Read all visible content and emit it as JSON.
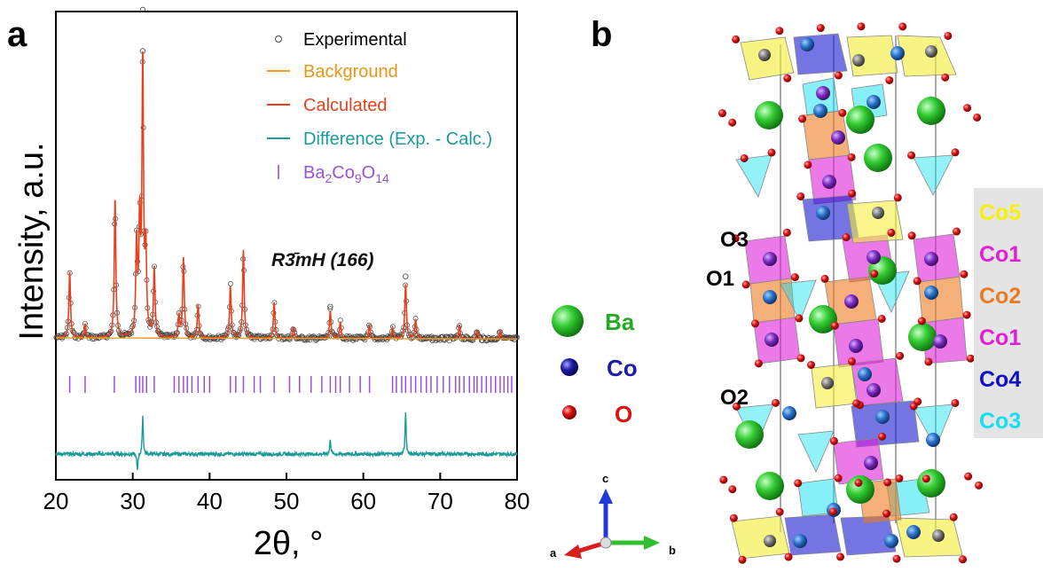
{
  "panel_a": {
    "label": "a",
    "legend": {
      "experimental": "Experimental",
      "background": "Background",
      "calculated": "Calculated",
      "difference": "Difference (Exp. - Calc.)",
      "phase_base": "Ba",
      "phase_sub1": "2",
      "phase_co": "Co",
      "phase_sub2": "9",
      "phase_o": "O",
      "phase_sub3": "14"
    },
    "space_group": "R3̄mH (166)"
  },
  "chart_data": {
    "type": "line",
    "title": "",
    "xlabel": "2θ, °",
    "ylabel": "Intensity, a.u.",
    "xlim": [
      20,
      80
    ],
    "x_ticks": [
      "20",
      "30",
      "40",
      "50",
      "60",
      "70",
      "80"
    ],
    "y_ticks_shown": false,
    "grid": false,
    "legend_position": "top-right",
    "colors": {
      "experimental": "#444444",
      "background": "#f0a020",
      "calculated": "#e8401c",
      "difference": "#1a9a9a",
      "bragg": "#9b4fd8"
    },
    "peaks": [
      {
        "x": 21.8,
        "height": 0.24
      },
      {
        "x": 23.8,
        "height": 0.05
      },
      {
        "x": 27.7,
        "height": 0.51
      },
      {
        "x": 30.5,
        "height": 0.34
      },
      {
        "x": 30.9,
        "height": 0.4
      },
      {
        "x": 31.3,
        "height": 1.0
      },
      {
        "x": 31.7,
        "height": 0.3
      },
      {
        "x": 32.8,
        "height": 0.25
      },
      {
        "x": 36.0,
        "height": 0.08
      },
      {
        "x": 36.6,
        "height": 0.29
      },
      {
        "x": 38.5,
        "height": 0.12
      },
      {
        "x": 42.7,
        "height": 0.19
      },
      {
        "x": 44.4,
        "height": 0.32
      },
      {
        "x": 48.4,
        "height": 0.13
      },
      {
        "x": 50.9,
        "height": 0.04
      },
      {
        "x": 55.7,
        "height": 0.1
      },
      {
        "x": 57.0,
        "height": 0.06
      },
      {
        "x": 60.8,
        "height": 0.05
      },
      {
        "x": 63.8,
        "height": 0.04
      },
      {
        "x": 65.5,
        "height": 0.2
      },
      {
        "x": 66.8,
        "height": 0.07
      },
      {
        "x": 72.5,
        "height": 0.05
      },
      {
        "x": 74.8,
        "height": 0.03
      },
      {
        "x": 77.8,
        "height": 0.03
      }
    ],
    "bragg_positions": [
      21.8,
      23.8,
      27.6,
      30.4,
      30.9,
      31.3,
      31.8,
      32.8,
      35.4,
      36.0,
      36.6,
      37.1,
      37.7,
      38.5,
      39.3,
      40.0,
      42.7,
      43.4,
      44.4,
      45.8,
      46.6,
      48.4,
      50.4,
      51.7,
      53.2,
      54.6,
      55.7,
      56.4,
      57.0,
      58.2,
      59.6,
      60.8,
      63.8,
      64.3,
      65.0,
      65.5,
      66.2,
      66.8,
      67.5,
      68.2,
      68.8,
      69.6,
      70.4,
      71.2,
      72.0,
      72.5,
      73.1,
      73.8,
      74.4,
      74.8,
      75.4,
      76.0,
      76.6,
      77.2,
      77.8,
      78.3,
      78.8,
      79.3
    ],
    "difference_spikes": [
      {
        "x": 31.3,
        "value": 0.55
      },
      {
        "x": 30.6,
        "value": -0.25
      },
      {
        "x": 55.7,
        "value": 0.22
      },
      {
        "x": 65.5,
        "value": 0.6
      }
    ]
  },
  "panel_b": {
    "label": "b",
    "species_legend": [
      {
        "symbol": "Ba",
        "color": "#33cc33"
      },
      {
        "symbol": "Co",
        "color": "#1c1ca8"
      },
      {
        "symbol": "O",
        "color": "#dd1111"
      }
    ],
    "site_labels": {
      "o3": "O3",
      "o1": "O1",
      "o2": "O2"
    },
    "co_key": [
      {
        "label": "Co5",
        "color": "#f7f000"
      },
      {
        "label": "Co1",
        "color": "#e020d8"
      },
      {
        "label": "Co2",
        "color": "#ee7a20"
      },
      {
        "label": "Co1",
        "color": "#e020d8"
      },
      {
        "label": "Co4",
        "color": "#1010c8"
      },
      {
        "label": "Co3",
        "color": "#10e0f0"
      }
    ],
    "axes": {
      "c": "c",
      "a": "a",
      "b": "b"
    }
  }
}
